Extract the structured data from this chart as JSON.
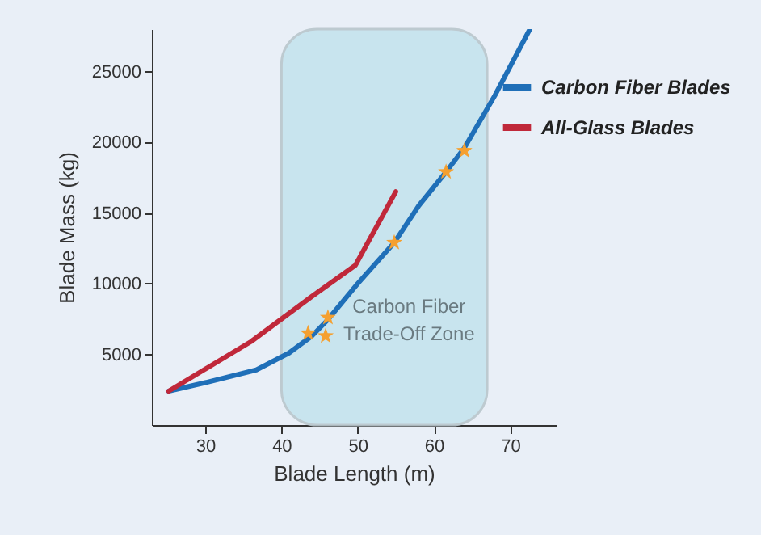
{
  "chart_data": {
    "type": "line",
    "xlabel": "Blade Length (m)",
    "ylabel": "Blade Mass (kg)",
    "xlim": [
      23,
      76
    ],
    "xticks": [
      30,
      40,
      50,
      60,
      70
    ],
    "ylim": [
      0,
      28000
    ],
    "yticks": [
      5000,
      10000,
      15000,
      20000,
      25000
    ],
    "grid": false,
    "legend": "top right",
    "bands": [
      {
        "axis": "x",
        "from": 40,
        "to": 67,
        "label": "Carbon Fiber\nTrade-Off Zone",
        "color": "#c5e3ee"
      }
    ],
    "series": [
      {
        "name": "Carbon Fiber Blades",
        "color": "#1f6fb8",
        "x": [
          25.2,
          30,
          36.7,
          41,
          44,
          46,
          50,
          54.8,
          58,
          61.6,
          64,
          68,
          72.6
        ],
        "values": [
          2400,
          3000,
          3900,
          5100,
          6300,
          7400,
          10000,
          12900,
          15500,
          17900,
          19600,
          23300,
          28000
        ]
      },
      {
        "name": "All-Glass Blades",
        "color": "#c0283a",
        "x": [
          25.2,
          36,
          44,
          49.7,
          55
        ],
        "values": [
          2400,
          5900,
          9100,
          11300,
          16500
        ]
      },
      {
        "color": "#f5a030",
        "type": "scatter",
        "marker": "star",
        "x": [
          43.5,
          45.8,
          46.1,
          54.8,
          61.6,
          64
        ],
        "values": [
          6500,
          6300,
          7600,
          12900,
          17900,
          19400
        ]
      }
    ]
  }
}
